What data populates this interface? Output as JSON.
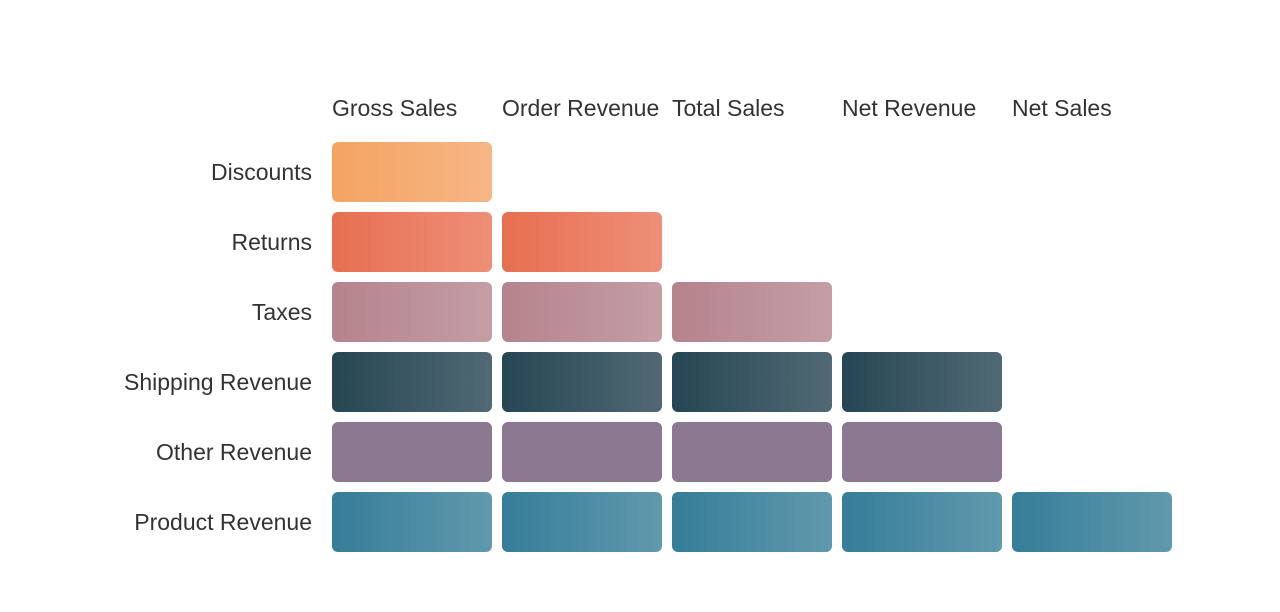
{
  "columns": [
    {
      "key": "gross-sales",
      "label": "Gross Sales"
    },
    {
      "key": "order-revenue",
      "label": "Order Revenue"
    },
    {
      "key": "total-sales",
      "label": "Total Sales"
    },
    {
      "key": "net-revenue",
      "label": "Net Revenue"
    },
    {
      "key": "net-sales",
      "label": "Net Sales"
    }
  ],
  "rows": [
    {
      "key": "discounts",
      "label": "Discounts",
      "included_in": [
        "gross-sales"
      ],
      "color_start": "#F4A462",
      "color_end": "#F6B686"
    },
    {
      "key": "returns",
      "label": "Returns",
      "included_in": [
        "gross-sales",
        "order-revenue"
      ],
      "color_start": "#E76F51",
      "color_end": "#EE8F78"
    },
    {
      "key": "taxes",
      "label": "Taxes",
      "included_in": [
        "gross-sales",
        "order-revenue",
        "total-sales"
      ],
      "color_start": "#B5838D",
      "color_end": "#C49EA6"
    },
    {
      "key": "shipping-revenue",
      "label": "Shipping Revenue",
      "included_in": [
        "gross-sales",
        "order-revenue",
        "total-sales",
        "net-revenue"
      ],
      "color_start": "#264653",
      "color_end": "#516975"
    },
    {
      "key": "other-revenue",
      "label": "Other Revenue",
      "included_in": [
        "gross-sales",
        "order-revenue",
        "total-sales",
        "net-revenue"
      ],
      "color_start": "#8A7991",
      "color_end": "#8A7991"
    },
    {
      "key": "product-revenue",
      "label": "Product Revenue",
      "included_in": [
        "gross-sales",
        "order-revenue",
        "total-sales",
        "net-revenue",
        "net-sales"
      ],
      "color_start": "#357D99",
      "color_end": "#6199AD"
    }
  ]
}
